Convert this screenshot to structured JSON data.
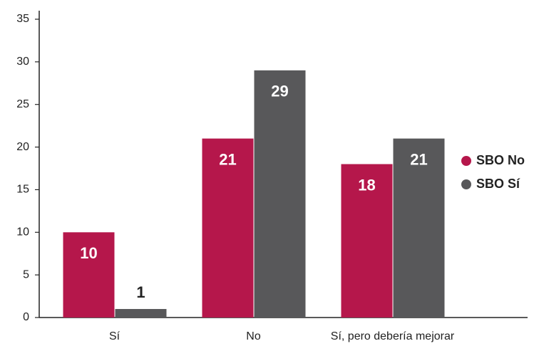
{
  "chart_data": {
    "type": "bar",
    "categories": [
      "Sí",
      "No",
      "Sí, pero debería mejorar"
    ],
    "series": [
      {
        "name": "SBO No",
        "color": "#b5174b",
        "values": [
          10,
          21,
          18
        ]
      },
      {
        "name": "SBO Sí",
        "color": "#58585a",
        "values": [
          1,
          29,
          21
        ]
      }
    ],
    "ylim": [
      0,
      35
    ],
    "yticks": [
      0,
      5,
      10,
      15,
      20,
      25,
      30,
      35
    ],
    "grid": false,
    "legend": "right"
  }
}
